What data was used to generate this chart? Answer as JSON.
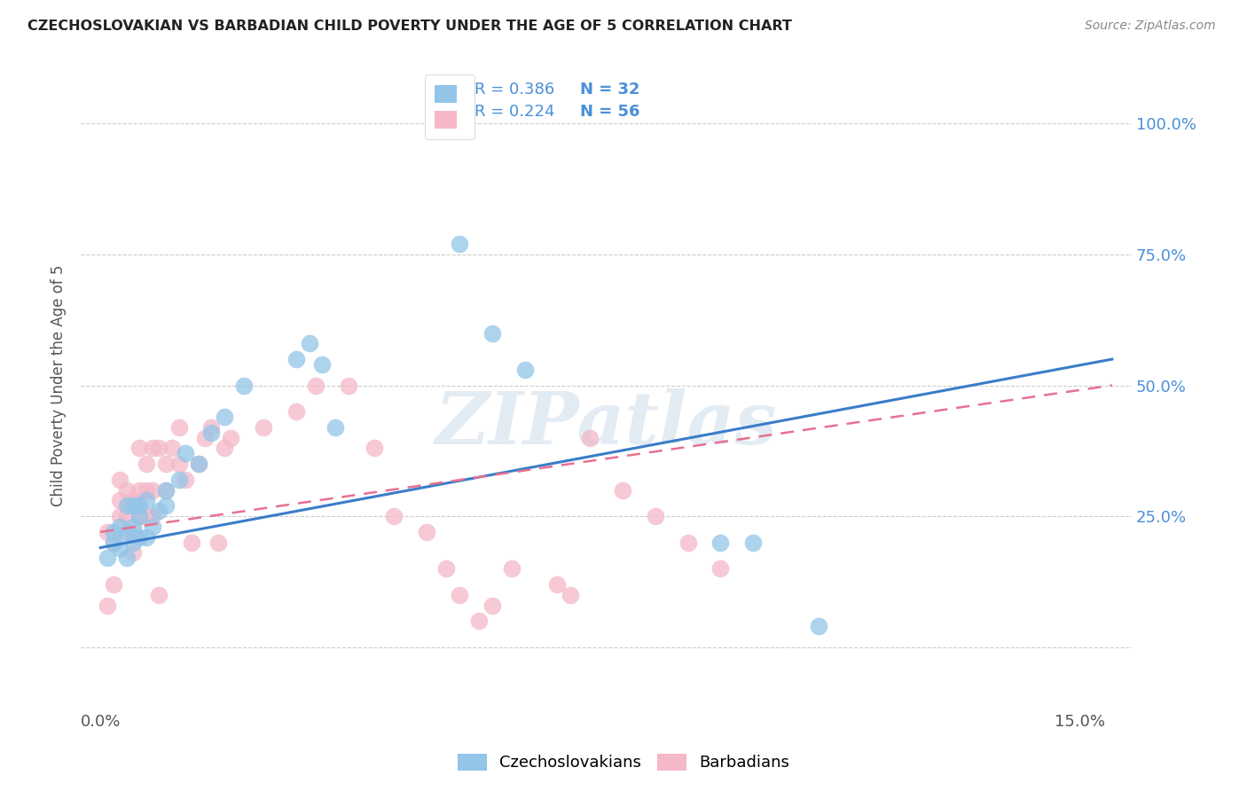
{
  "title": "CZECHOSLOVAKIAN VS BARBADIAN CHILD POVERTY UNDER THE AGE OF 5 CORRELATION CHART",
  "source": "Source: ZipAtlas.com",
  "ylabel": "Child Poverty Under the Age of 5",
  "xlim": [
    -0.003,
    0.158
  ],
  "ylim": [
    -0.12,
    1.12
  ],
  "y_tick_positions": [
    0.0,
    0.25,
    0.5,
    0.75,
    1.0
  ],
  "y_tick_labels": [
    "",
    "25.0%",
    "50.0%",
    "75.0%",
    "100.0%"
  ],
  "x_tick_positions": [
    0.0,
    0.15
  ],
  "x_tick_labels": [
    "0.0%",
    "15.0%"
  ],
  "czecho_color": "#92c5e8",
  "barb_color": "#f4b8c8",
  "line_czecho_color": "#3a7dc9",
  "line_barb_color": "#e87090",
  "tick_label_color": "#4a90d9",
  "watermark_text": "ZIPatlas",
  "grid_color": "#cccccc",
  "czecho_x": [
    0.001,
    0.002,
    0.002,
    0.003,
    0.003,
    0.004,
    0.004,
    0.004,
    0.005,
    0.005,
    0.005,
    0.006,
    0.006,
    0.006,
    0.007,
    0.007,
    0.008,
    0.009,
    0.01,
    0.01,
    0.012,
    0.013,
    0.015,
    0.017,
    0.019,
    0.022,
    0.03,
    0.032,
    0.034,
    0.036,
    0.055,
    0.06,
    0.065,
    0.095,
    0.1,
    0.11
  ],
  "czecho_y": [
    0.17,
    0.2,
    0.22,
    0.19,
    0.23,
    0.17,
    0.22,
    0.27,
    0.2,
    0.23,
    0.27,
    0.21,
    0.25,
    0.27,
    0.21,
    0.28,
    0.23,
    0.26,
    0.27,
    0.3,
    0.32,
    0.37,
    0.35,
    0.41,
    0.44,
    0.5,
    0.55,
    0.58,
    0.54,
    0.42,
    0.77,
    0.6,
    0.53,
    0.2,
    0.2,
    0.04
  ],
  "barb_x": [
    0.001,
    0.001,
    0.002,
    0.002,
    0.003,
    0.003,
    0.003,
    0.004,
    0.004,
    0.004,
    0.005,
    0.005,
    0.005,
    0.006,
    0.006,
    0.006,
    0.007,
    0.007,
    0.007,
    0.008,
    0.008,
    0.008,
    0.009,
    0.009,
    0.01,
    0.01,
    0.011,
    0.012,
    0.012,
    0.013,
    0.014,
    0.015,
    0.016,
    0.017,
    0.018,
    0.019,
    0.02,
    0.025,
    0.03,
    0.033,
    0.038,
    0.042,
    0.045,
    0.05,
    0.053,
    0.055,
    0.058,
    0.06,
    0.063,
    0.07,
    0.072,
    0.075,
    0.08,
    0.085,
    0.09,
    0.095
  ],
  "barb_y": [
    0.22,
    0.08,
    0.2,
    0.12,
    0.25,
    0.28,
    0.32,
    0.22,
    0.25,
    0.3,
    0.18,
    0.22,
    0.28,
    0.25,
    0.3,
    0.38,
    0.25,
    0.3,
    0.35,
    0.3,
    0.25,
    0.38,
    0.38,
    0.1,
    0.3,
    0.35,
    0.38,
    0.35,
    0.42,
    0.32,
    0.2,
    0.35,
    0.4,
    0.42,
    0.2,
    0.38,
    0.4,
    0.42,
    0.45,
    0.5,
    0.5,
    0.38,
    0.25,
    0.22,
    0.15,
    0.1,
    0.05,
    0.08,
    0.15,
    0.12,
    0.1,
    0.4,
    0.3,
    0.25,
    0.2,
    0.15
  ],
  "czecho_line_x0": 0.0,
  "czecho_line_y0": 0.19,
  "czecho_line_x1": 0.155,
  "czecho_line_y1": 0.55,
  "barb_line_x0": 0.0,
  "barb_line_y0": 0.22,
  "barb_line_x1": 0.155,
  "barb_line_y1": 0.5
}
